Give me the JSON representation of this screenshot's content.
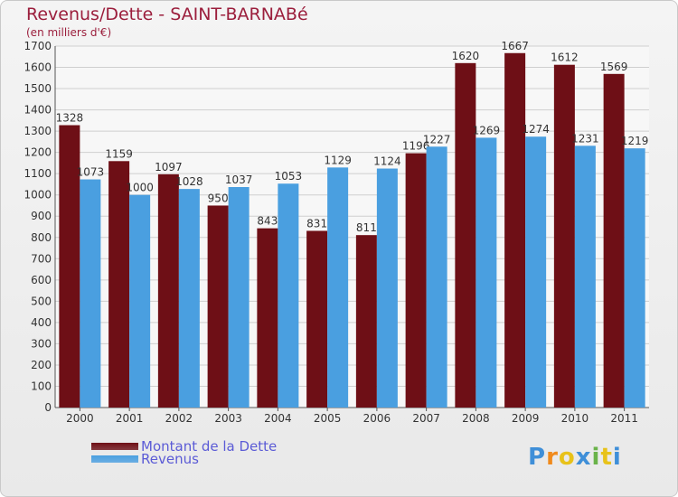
{
  "header": {
    "title": "Revenus/Dette - SAINT-BARNABé",
    "subtitle": "(en milliers d'€)"
  },
  "chart_data": {
    "type": "bar",
    "categories": [
      "2000",
      "2001",
      "2002",
      "2003",
      "2004",
      "2005",
      "2006",
      "2007",
      "2008",
      "2009",
      "2010",
      "2011"
    ],
    "series": [
      {
        "name": "Montant de la Dette",
        "color": "#6e0f16",
        "values": [
          1328,
          1159,
          1097,
          950,
          843,
          831,
          811,
          1196,
          1620,
          1667,
          1612,
          1569
        ]
      },
      {
        "name": "Revenus",
        "color": "#4a9fe0",
        "values": [
          1073,
          1000,
          1028,
          1037,
          1053,
          1129,
          1124,
          1227,
          1269,
          1274,
          1231,
          1219
        ]
      }
    ],
    "ylim": [
      0,
      1700
    ],
    "yticks": [
      0,
      100,
      200,
      300,
      400,
      500,
      600,
      700,
      800,
      900,
      1000,
      1100,
      1200,
      1300,
      1400,
      1500,
      1600,
      1700
    ],
    "grid": true,
    "legend_position": "bottom-left"
  },
  "legend": {
    "items": [
      {
        "label": "Montant de la Dette",
        "color": "#6e0f16"
      },
      {
        "label": "Revenus",
        "color": "#4a9fe0"
      }
    ]
  },
  "logo": {
    "text": "Proxiti",
    "letters": [
      "P",
      "r",
      "o",
      "x",
      "i",
      "t",
      "i"
    ],
    "colors": [
      "#3f8fd8",
      "#f08a1c",
      "#e8c21a",
      "#3f8fd8",
      "#6ab34a",
      "#e8c21a",
      "#3f8fd8"
    ]
  }
}
